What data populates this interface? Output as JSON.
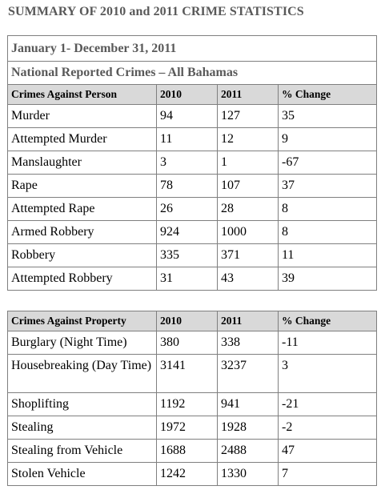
{
  "title": "SUMMARY OF 2010 and 2011 CRIME STATISTICS",
  "person_table": {
    "period": "January 1- December 31, 2011",
    "subtitle": "National Reported Crimes – All Bahamas",
    "headers": [
      "Crimes Against Person",
      "2010",
      "2011",
      "% Change"
    ],
    "rows": [
      [
        "Murder",
        "94",
        "127",
        "35"
      ],
      [
        "Attempted Murder",
        "11",
        "12",
        "9"
      ],
      [
        "Manslaughter",
        "3",
        "1",
        "-67"
      ],
      [
        "Rape",
        "78",
        "107",
        "37"
      ],
      [
        "Attempted Rape",
        "26",
        "28",
        "8"
      ],
      [
        "Armed Robbery",
        "924",
        "1000",
        "8"
      ],
      [
        "Robbery",
        "335",
        "371",
        "11"
      ],
      [
        "Attempted Robbery",
        "31",
        "43",
        "39"
      ]
    ]
  },
  "property_table": {
    "headers": [
      "Crimes Against Property",
      "2010",
      "2011",
      "% Change"
    ],
    "rows": [
      [
        "Burglary (Night Time)",
        "380",
        "338",
        "-11"
      ],
      [
        "Housebreaking (Day Time)",
        "3141",
        "3237",
        "3"
      ],
      [
        "Shoplifting",
        "1192",
        "941",
        "-21"
      ],
      [
        "Stealing",
        "1972",
        "1928",
        "-2"
      ],
      [
        "Stealing from Vehicle",
        "1688",
        "2488",
        "47"
      ],
      [
        "Stolen Vehicle",
        "1242",
        "1330",
        "7"
      ]
    ]
  },
  "colors": {
    "title_text": "#595959",
    "header_fill": "#d9d9d9",
    "border": "#7f7f7f"
  }
}
